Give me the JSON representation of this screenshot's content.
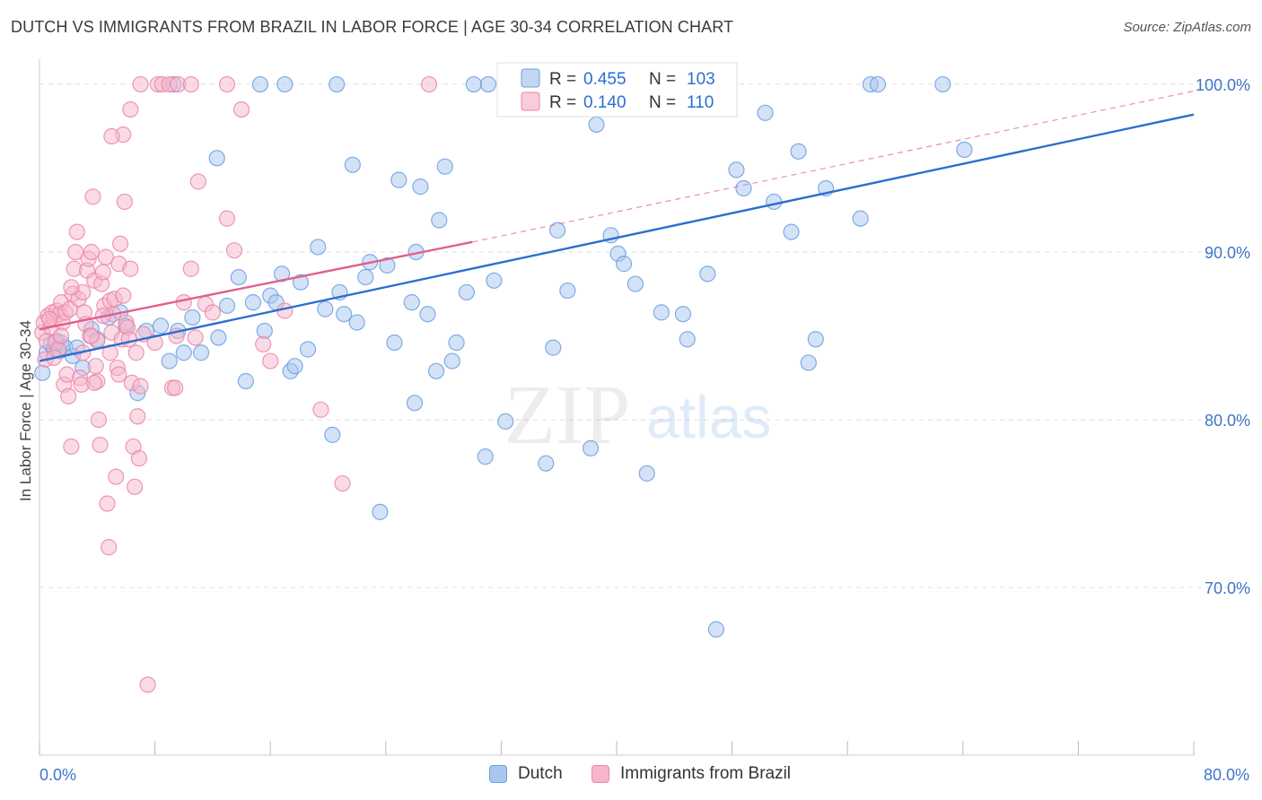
{
  "header": {
    "title": "DUTCH VS IMMIGRANTS FROM BRAZIL IN LABOR FORCE | AGE 30-34 CORRELATION CHART",
    "source": "Source: ZipAtlas.com"
  },
  "watermark": {
    "zip": "ZIP",
    "atlas": "atlas"
  },
  "colors": {
    "dutch_fill": "#a9c6ef",
    "dutch_stroke": "#6b9fe0",
    "dutch_line": "#2b6fd0",
    "brazil_fill": "#f6b7cb",
    "brazil_stroke": "#ec85a6",
    "brazil_line": "#e0608c",
    "axis_label": "#3f74c8",
    "grid": "#dddddd"
  },
  "legend_top": {
    "rows": [
      {
        "r_label": "R =",
        "r_value": "0.455",
        "n_label": "N =",
        "n_value": "103"
      },
      {
        "r_label": "R =",
        "r_value": "0.140",
        "n_label": "N =",
        "n_value": "110"
      }
    ]
  },
  "chart_data": {
    "type": "scatter",
    "title": "DUTCH VS IMMIGRANTS FROM BRAZIL IN LABOR FORCE | AGE 30-34 CORRELATION CHART",
    "xlabel": "",
    "ylabel": "In Labor Force | Age 30-34",
    "xlim": [
      0,
      80
    ],
    "ylim": [
      60,
      101.5
    ],
    "x_tick_labels": [
      "0.0%",
      "80.0%"
    ],
    "y_ticks": [
      {
        "value": 70,
        "label": "70.0%"
      },
      {
        "value": 80,
        "label": "80.0%"
      },
      {
        "value": 90,
        "label": "90.0%"
      },
      {
        "value": 100,
        "label": "100.0%"
      }
    ],
    "grid": true,
    "legend_position": "bottom",
    "series": [
      {
        "name": "Dutch",
        "r": 0.455,
        "n": 103,
        "trend": {
          "x": [
            0,
            80
          ],
          "y": [
            83.5,
            98.2
          ],
          "style": "solid"
        },
        "points": [
          [
            0.2,
            82.8
          ],
          [
            0.5,
            84.0
          ],
          [
            0.8,
            84.5
          ],
          [
            1.0,
            84.2
          ],
          [
            1.2,
            84.7
          ],
          [
            1.4,
            84.1
          ],
          [
            1.5,
            84.6
          ],
          [
            1.8,
            84.3
          ],
          [
            2.3,
            83.8
          ],
          [
            2.6,
            84.3
          ],
          [
            3.0,
            83.1
          ],
          [
            4.0,
            84.8
          ],
          [
            4.8,
            86.1
          ],
          [
            6.8,
            81.6
          ],
          [
            7.4,
            85.3
          ],
          [
            9.0,
            83.5
          ],
          [
            9.6,
            85.3
          ],
          [
            10.6,
            86.1
          ],
          [
            11.2,
            84.0
          ],
          [
            12.4,
            84.9
          ],
          [
            13.0,
            86.8
          ],
          [
            13.8,
            88.5
          ],
          [
            14.3,
            82.3
          ],
          [
            14.8,
            87.0
          ],
          [
            15.6,
            85.3
          ],
          [
            16.0,
            87.4
          ],
          [
            16.4,
            87.0
          ],
          [
            16.8,
            88.7
          ],
          [
            17.4,
            82.9
          ],
          [
            17.7,
            83.2
          ],
          [
            18.1,
            88.2
          ],
          [
            18.6,
            84.2
          ],
          [
            19.3,
            90.3
          ],
          [
            19.8,
            86.6
          ],
          [
            20.3,
            79.1
          ],
          [
            20.8,
            87.6
          ],
          [
            21.1,
            86.3
          ],
          [
            21.7,
            95.2
          ],
          [
            22.6,
            88.5
          ],
          [
            22.9,
            89.4
          ],
          [
            23.6,
            74.5
          ],
          [
            24.1,
            89.2
          ],
          [
            24.6,
            84.6
          ],
          [
            24.9,
            94.3
          ],
          [
            25.8,
            87.0
          ],
          [
            26.1,
            90.0
          ],
          [
            26.4,
            93.9
          ],
          [
            26.9,
            86.3
          ],
          [
            27.5,
            82.9
          ],
          [
            27.7,
            91.9
          ],
          [
            28.1,
            95.1
          ],
          [
            28.6,
            83.5
          ],
          [
            29.6,
            87.6
          ],
          [
            30.1,
            100.0
          ],
          [
            30.9,
            77.8
          ],
          [
            31.1,
            100.0
          ],
          [
            31.5,
            88.3
          ],
          [
            32.3,
            79.9
          ],
          [
            33.1,
            100.0
          ],
          [
            35.1,
            77.4
          ],
          [
            35.6,
            84.3
          ],
          [
            35.9,
            91.3
          ],
          [
            36.6,
            87.7
          ],
          [
            38.2,
            78.3
          ],
          [
            38.6,
            97.6
          ],
          [
            39.6,
            91.0
          ],
          [
            40.1,
            89.9
          ],
          [
            40.5,
            89.3
          ],
          [
            41.3,
            88.1
          ],
          [
            42.1,
            76.8
          ],
          [
            43.1,
            86.4
          ],
          [
            44.6,
            86.3
          ],
          [
            44.9,
            84.8
          ],
          [
            46.3,
            88.7
          ],
          [
            46.9,
            67.5
          ],
          [
            48.3,
            94.9
          ],
          [
            48.8,
            93.8
          ],
          [
            50.3,
            98.3
          ],
          [
            50.9,
            93.0
          ],
          [
            52.1,
            91.2
          ],
          [
            52.6,
            96.0
          ],
          [
            53.3,
            83.4
          ],
          [
            53.8,
            84.8
          ],
          [
            54.5,
            93.8
          ],
          [
            56.9,
            92.0
          ],
          [
            57.6,
            100.0
          ],
          [
            58.1,
            100.0
          ],
          [
            62.6,
            100.0
          ],
          [
            64.1,
            96.1
          ],
          [
            15.3,
            100.0
          ],
          [
            8.4,
            85.6
          ],
          [
            5.6,
            86.4
          ],
          [
            20.6,
            100.0
          ],
          [
            34.3,
            100.0
          ],
          [
            9.3,
            100.0
          ],
          [
            12.3,
            95.6
          ],
          [
            17.0,
            100.0
          ],
          [
            6.0,
            85.6
          ],
          [
            3.6,
            85.4
          ],
          [
            10.0,
            84.0
          ],
          [
            22.0,
            85.8
          ],
          [
            26.0,
            81.0
          ],
          [
            28.9,
            84.6
          ]
        ]
      },
      {
        "name": "Immigrants from Brazil",
        "r": 0.14,
        "n": 110,
        "trend": {
          "x": [
            0,
            30
          ],
          "y": [
            85.4,
            90.6
          ],
          "style": "solid",
          "extended": {
            "x": [
              30,
              80
            ],
            "y": [
              90.6,
              99.6
            ],
            "style": "dashed"
          }
        },
        "points": [
          [
            0.2,
            85.2
          ],
          [
            0.3,
            85.8
          ],
          [
            0.5,
            84.7
          ],
          [
            0.6,
            86.2
          ],
          [
            0.8,
            85.5
          ],
          [
            0.9,
            86.4
          ],
          [
            1.0,
            86.0
          ],
          [
            1.1,
            84.6
          ],
          [
            1.2,
            86.5
          ],
          [
            1.3,
            84.2
          ],
          [
            1.4,
            86.3
          ],
          [
            1.5,
            87.0
          ],
          [
            1.6,
            85.8
          ],
          [
            1.7,
            82.1
          ],
          [
            1.8,
            86.4
          ],
          [
            1.9,
            82.7
          ],
          [
            2.0,
            81.4
          ],
          [
            2.1,
            86.6
          ],
          [
            2.2,
            78.4
          ],
          [
            2.3,
            87.5
          ],
          [
            2.4,
            89.0
          ],
          [
            2.5,
            90.0
          ],
          [
            2.6,
            91.2
          ],
          [
            2.7,
            87.2
          ],
          [
            2.8,
            82.5
          ],
          [
            2.9,
            82.1
          ],
          [
            3.0,
            87.6
          ],
          [
            3.1,
            86.4
          ],
          [
            3.2,
            85.7
          ],
          [
            3.3,
            88.9
          ],
          [
            3.4,
            89.6
          ],
          [
            3.5,
            85.0
          ],
          [
            3.6,
            90.0
          ],
          [
            3.7,
            93.3
          ],
          [
            3.8,
            88.3
          ],
          [
            3.9,
            83.2
          ],
          [
            4.0,
            84.7
          ],
          [
            4.1,
            80.0
          ],
          [
            4.2,
            78.5
          ],
          [
            4.3,
            88.1
          ],
          [
            4.4,
            88.8
          ],
          [
            4.5,
            86.8
          ],
          [
            4.6,
            89.7
          ],
          [
            4.7,
            75.0
          ],
          [
            4.8,
            72.4
          ],
          [
            4.9,
            87.1
          ],
          [
            5.0,
            85.2
          ],
          [
            5.1,
            86.3
          ],
          [
            5.2,
            87.2
          ],
          [
            5.3,
            76.6
          ],
          [
            5.4,
            83.1
          ],
          [
            5.5,
            89.3
          ],
          [
            5.6,
            90.5
          ],
          [
            5.7,
            84.8
          ],
          [
            5.8,
            87.4
          ],
          [
            5.9,
            93.0
          ],
          [
            6.0,
            85.8
          ],
          [
            6.1,
            85.5
          ],
          [
            6.2,
            84.8
          ],
          [
            6.3,
            89.0
          ],
          [
            6.4,
            82.2
          ],
          [
            6.5,
            78.4
          ],
          [
            6.6,
            76.0
          ],
          [
            6.7,
            84.0
          ],
          [
            6.8,
            80.2
          ],
          [
            6.9,
            77.7
          ],
          [
            7.0,
            82.0
          ],
          [
            7.2,
            85.1
          ],
          [
            7.5,
            64.2
          ],
          [
            8.0,
            84.6
          ],
          [
            9.2,
            81.9
          ],
          [
            9.4,
            81.9
          ],
          [
            9.5,
            85.0
          ],
          [
            10.0,
            87.0
          ],
          [
            10.5,
            89.0
          ],
          [
            10.8,
            84.9
          ],
          [
            11.0,
            94.2
          ],
          [
            11.5,
            86.9
          ],
          [
            12.0,
            86.4
          ],
          [
            13.0,
            92.0
          ],
          [
            13.5,
            90.1
          ],
          [
            14.0,
            98.5
          ],
          [
            15.5,
            84.5
          ],
          [
            16.0,
            83.5
          ],
          [
            17.0,
            86.5
          ],
          [
            19.5,
            80.6
          ],
          [
            21.0,
            76.2
          ],
          [
            5.8,
            97.0
          ],
          [
            5.0,
            96.9
          ],
          [
            6.3,
            98.5
          ],
          [
            7.0,
            100.0
          ],
          [
            8.2,
            100.0
          ],
          [
            8.5,
            100.0
          ],
          [
            9.0,
            100.0
          ],
          [
            9.6,
            100.0
          ],
          [
            10.5,
            100.0
          ],
          [
            13.0,
            100.0
          ],
          [
            27.0,
            100.0
          ],
          [
            0.4,
            83.6
          ],
          [
            0.7,
            86.0
          ],
          [
            1.0,
            83.7
          ],
          [
            3.0,
            84.0
          ],
          [
            1.5,
            85.0
          ],
          [
            2.2,
            87.9
          ],
          [
            4.4,
            86.2
          ],
          [
            3.6,
            85.0
          ],
          [
            5.5,
            82.7
          ],
          [
            4.0,
            82.3
          ],
          [
            3.8,
            82.2
          ],
          [
            4.9,
            84.0
          ]
        ]
      }
    ]
  }
}
